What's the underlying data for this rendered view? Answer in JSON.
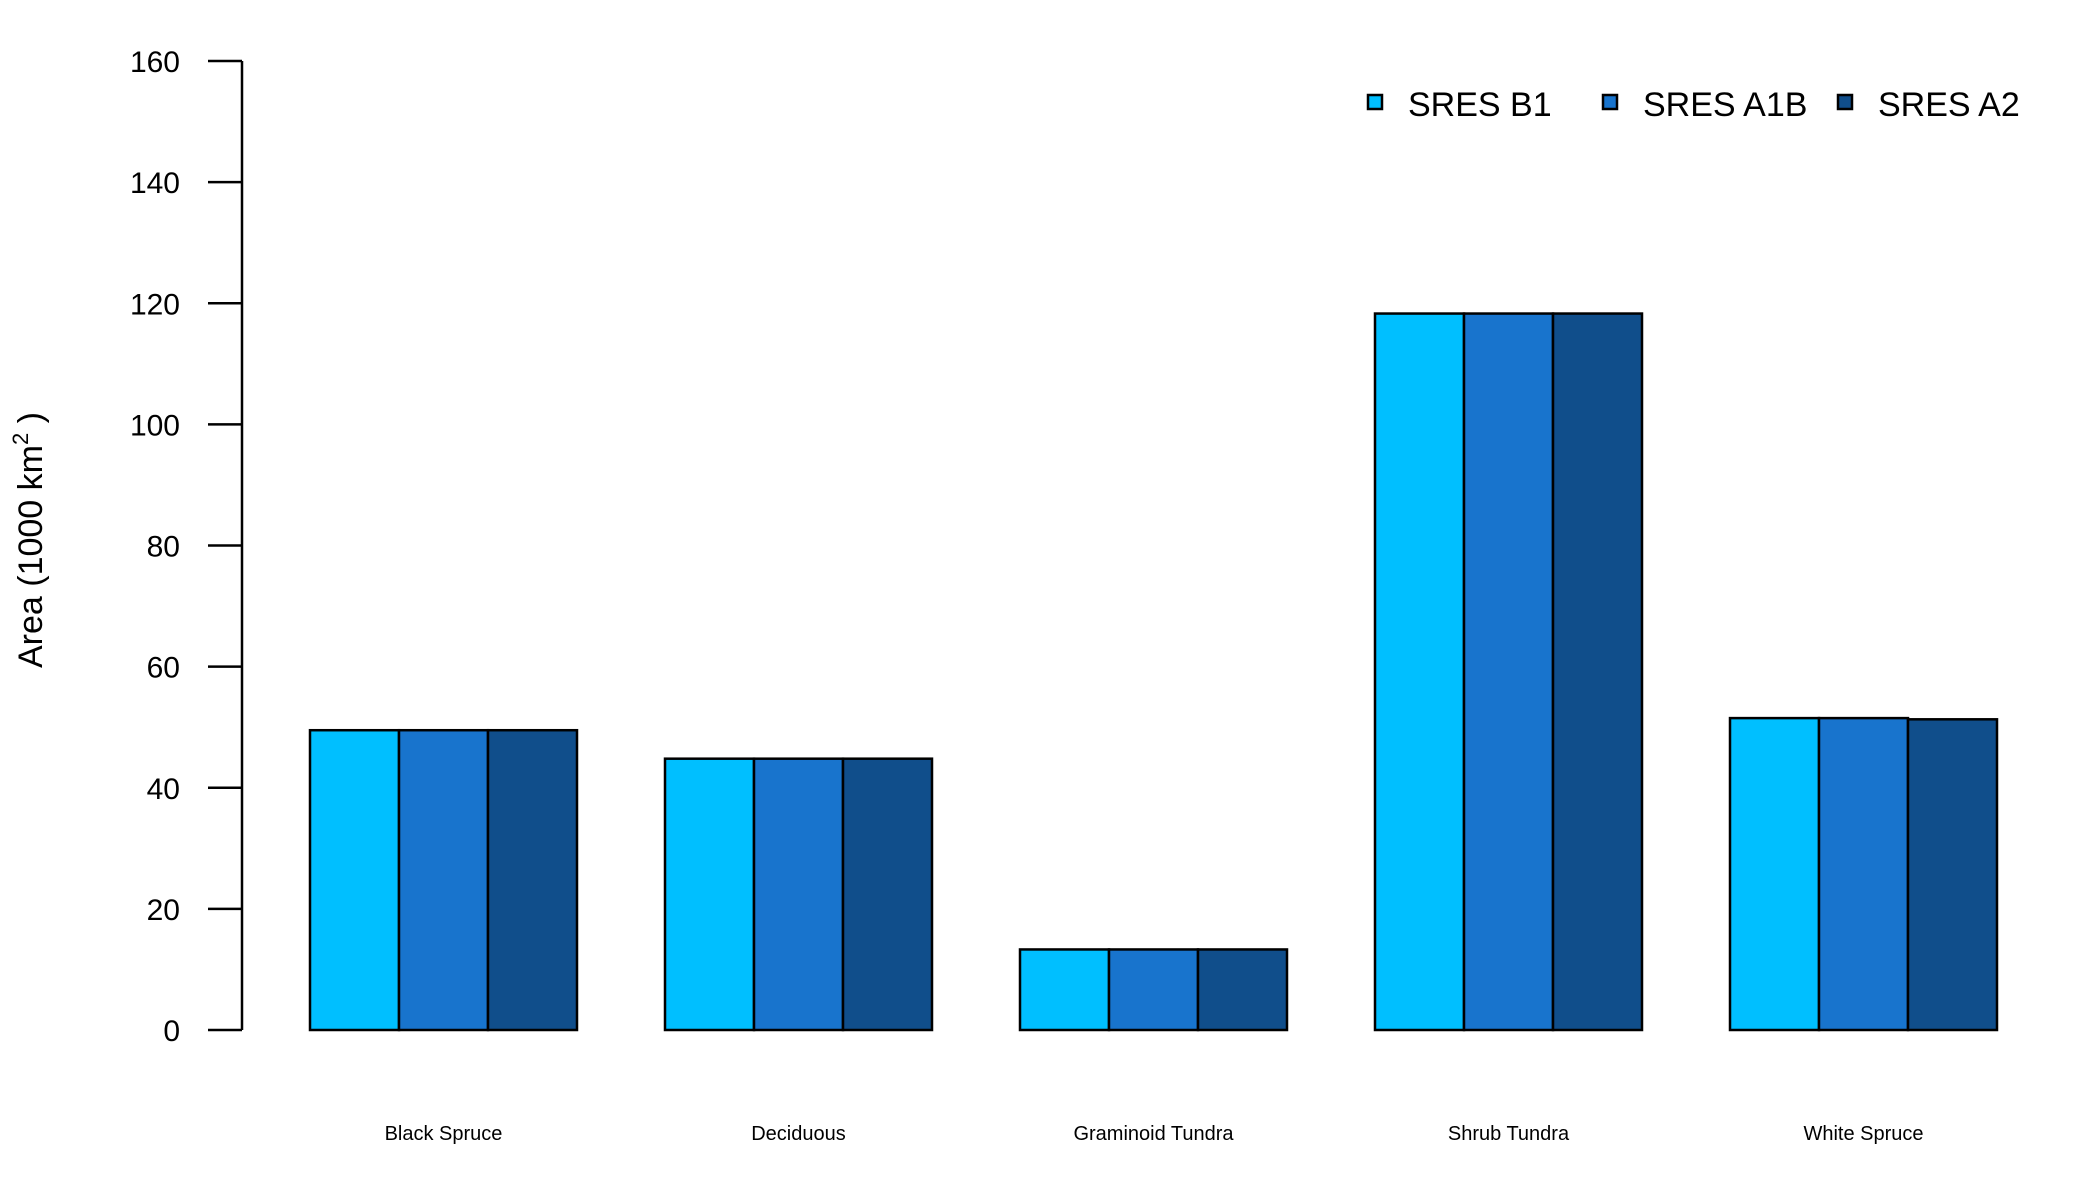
{
  "chart_data": {
    "type": "bar",
    "categories": [
      "Black Spruce",
      "Deciduous",
      "Graminoid Tundra",
      "Shrub Tundra",
      "White Spruce"
    ],
    "series": [
      {
        "name": "SRES B1",
        "color": "#00BFFF",
        "values": [
          49.5,
          44.8,
          13.3,
          118.3,
          51.5
        ]
      },
      {
        "name": "SRES A1B",
        "color": "#1874CD",
        "values": [
          49.5,
          44.8,
          13.3,
          118.3,
          51.5
        ]
      },
      {
        "name": "SRES A2",
        "color": "#104E8B",
        "values": [
          49.5,
          44.8,
          13.3,
          118.3,
          51.3
        ]
      }
    ],
    "ylabel_main": "Area (1000 km",
    "ylabel_sup": "2",
    "ylabel_close": " )",
    "ylim": [
      0,
      160
    ],
    "yticks": [
      "0",
      "20",
      "40",
      "60",
      "80",
      "100",
      "120",
      "140",
      "160"
    ],
    "legend_position": "top-right",
    "grid": false
  }
}
